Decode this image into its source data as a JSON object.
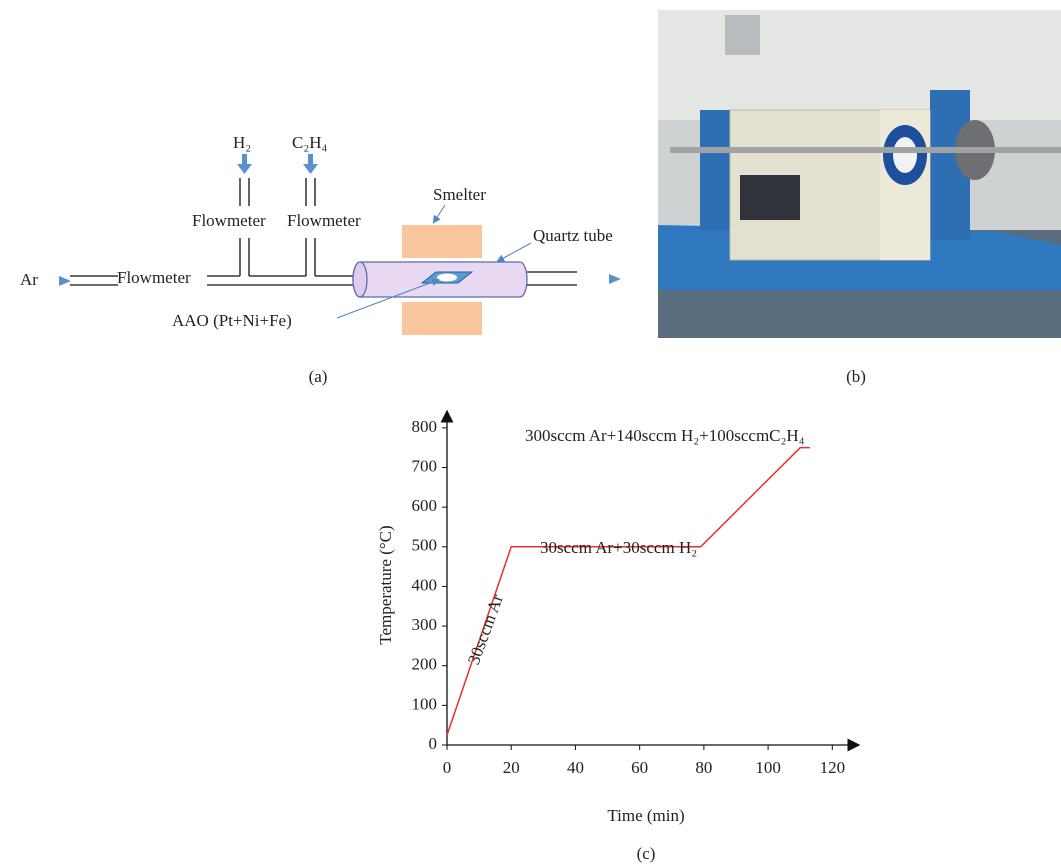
{
  "diagram": {
    "caption": "(a)",
    "gas_in": "Ar",
    "gas_h2": "H₂",
    "gas_c2h4": "C₂H₄",
    "flowmeters": [
      "Flowmeter",
      "Flowmeter",
      "Flowmeter"
    ],
    "smelter": "Smelter",
    "quartz_tube": "Quartz tube",
    "sample": "AAO (Pt+Ni+Fe)"
  },
  "photo": {
    "caption": "(b)"
  },
  "chart_data": {
    "type": "line",
    "caption": "(c)",
    "x_label": "Time (min)",
    "y_label": "Temperature (°C)",
    "x": [
      0,
      20,
      79,
      110,
      113
    ],
    "values": [
      25,
      500,
      500,
      750,
      750
    ],
    "color": "#e8312a",
    "xlim": [
      0,
      128
    ],
    "ylim": [
      0,
      840
    ],
    "xticks": [
      0,
      20,
      40,
      60,
      80,
      100,
      120
    ],
    "yticks": [
      0,
      100,
      200,
      300,
      400,
      500,
      600,
      700,
      800
    ],
    "grid": false,
    "annotations": [
      "30sccm Ar",
      "30sccm Ar+30sccm H₂",
      "300sccm Ar+140sccm H₂+100sccmC₂H₄"
    ]
  }
}
